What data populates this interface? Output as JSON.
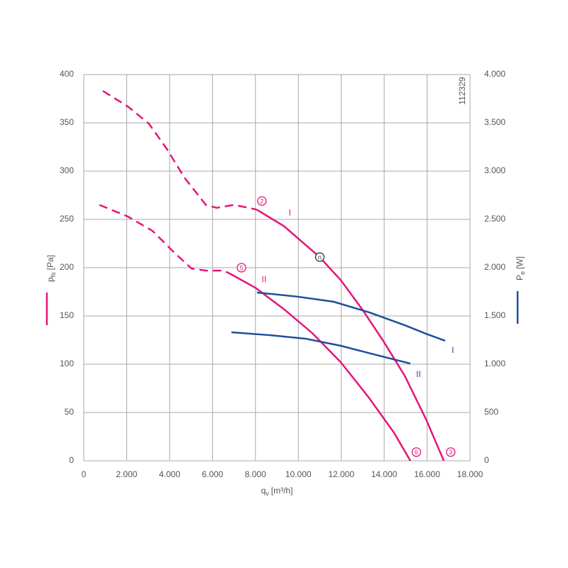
{
  "chart_data": {
    "type": "line",
    "code": "112329",
    "xlabel": {
      "main": "q",
      "sub": "v",
      "unit": "[m³/h]"
    },
    "ylabel": {
      "main": "p",
      "sub": "fs",
      "unit": "[Pa]"
    },
    "y2label": {
      "main": "P",
      "sub": "e",
      "unit": "[W]"
    },
    "xlim": [
      0,
      18000
    ],
    "ylim": [
      0,
      400
    ],
    "y2lim": [
      0,
      4000
    ],
    "xticks": [
      0,
      {
        "value": 2000,
        "label": "2.000"
      },
      {
        "value": 4000,
        "label": "4.000"
      },
      {
        "value": 6000,
        "label": "6.000"
      },
      {
        "value": 8000,
        "label": "8.000"
      },
      {
        "value": 10000,
        "label": "10.000"
      },
      {
        "value": 12000,
        "label": "12.000"
      },
      {
        "value": 14000,
        "label": "14.000"
      },
      {
        "value": 16000,
        "label": "16.000"
      },
      {
        "value": 18000,
        "label": "18.000"
      }
    ],
    "yticks": [
      0,
      50,
      100,
      150,
      200,
      250,
      300,
      350,
      400
    ],
    "y2ticks": [
      0,
      500,
      {
        "value": 1000,
        "label": "1.000"
      },
      {
        "value": 1500,
        "label": "1.500"
      },
      {
        "value": 2000,
        "label": "2.000"
      },
      {
        "value": 2500,
        "label": "2.500"
      },
      {
        "value": 3000,
        "label": "3.000"
      },
      {
        "value": 3500,
        "label": "3.500"
      },
      {
        "value": 4000,
        "label": "4.000"
      }
    ],
    "grid": true,
    "series": [
      {
        "color": "#e5157b",
        "style": "dashed",
        "x": [
          890,
          2050,
          3040,
          3870,
          4700,
          5690,
          6190,
          7000,
          7680,
          8070
        ],
        "values": [
          383,
          367,
          349,
          323,
          293,
          265,
          262,
          265,
          262,
          260
        ]
      },
      {
        "color": "#e5157b",
        "style": "solid",
        "x": [
          8070,
          9330,
          10990,
          11980,
          12970,
          13960,
          14960,
          15950,
          16780
        ],
        "values": [
          260,
          243,
          211,
          187,
          157,
          124,
          88,
          43,
          0
        ]
      },
      {
        "color": "#e5157b",
        "style": "dashed",
        "x": [
          730,
          2050,
          3210,
          4200,
          5030,
          5690,
          6520,
          6880
        ],
        "values": [
          265,
          253,
          238,
          216,
          199,
          197,
          197,
          193
        ]
      },
      {
        "color": "#e5157b",
        "style": "solid",
        "x": [
          6880,
          8010,
          9330,
          10660,
          11980,
          13300,
          14460,
          15220
        ],
        "values": [
          193,
          179,
          157,
          132,
          102,
          65,
          29,
          0
        ]
      },
      {
        "color": "#1f4e9c",
        "style": "solid",
        "axis": "y2",
        "x": [
          8070,
          9990,
          11650,
          13300,
          14960,
          15950,
          16840
        ],
        "values": [
          1743,
          1699,
          1647,
          1537,
          1404,
          1316,
          1243
        ]
      },
      {
        "color": "#1f4e9c",
        "style": "solid",
        "axis": "y2",
        "x": [
          6880,
          8670,
          10320,
          11980,
          13630,
          15220
        ],
        "values": [
          1331,
          1301,
          1265,
          1191,
          1096,
          1007
        ]
      }
    ],
    "annotations": [
      {
        "text": "2",
        "x": 8300,
        "y": 269,
        "color": "#e5157b",
        "circled": true
      },
      {
        "text": "5",
        "x": 7350,
        "y": 200,
        "color": "#e5157b",
        "circled": true
      },
      {
        "text": "n",
        "x": 11000,
        "y": 211,
        "color": "#333333",
        "circled": true
      },
      {
        "text": "6",
        "x": 15500,
        "y": 9,
        "color": "#e5157b",
        "circled": true
      },
      {
        "text": "3",
        "x": 17100,
        "y": 9,
        "color": "#e5157b",
        "circled": true
      },
      {
        "text": "I",
        "x": 9600,
        "y": 257,
        "color": "#e5157b"
      },
      {
        "text": "II",
        "x": 8400,
        "y": 188,
        "color": "#e5157b"
      },
      {
        "text": "I",
        "x": 17200,
        "y": 1150,
        "axis": "y2",
        "color": "#1f4e9c"
      },
      {
        "text": "II",
        "x": 15600,
        "y": 900,
        "axis": "y2",
        "color": "#1f4e9c"
      }
    ]
  }
}
